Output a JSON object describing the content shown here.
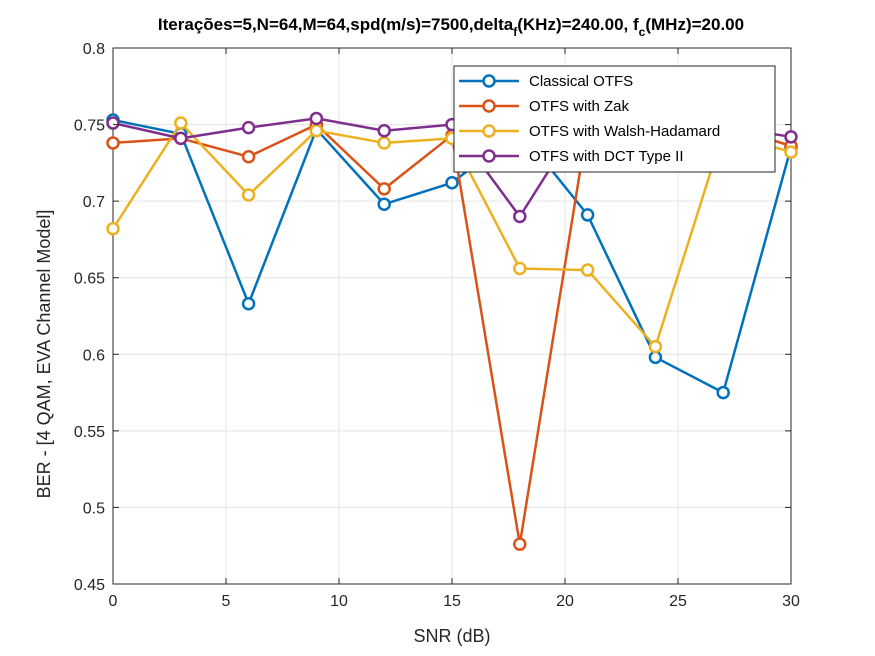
{
  "chart_data": {
    "type": "line",
    "title": {
      "main": "Iterações=5,N=64,M=64,spd(m/s)=7500,delta",
      "sub1": "f",
      "mid": "(KHz)=240.00, f",
      "sub2": "c",
      "tail": "(MHz)=20.00"
    },
    "xlabel": "SNR (dB)",
    "ylabel": "BER - [4 QAM, EVA Channel Model]",
    "xlim": [
      0,
      30
    ],
    "ylim": [
      0.45,
      0.8
    ],
    "xticks": [
      "0",
      "5",
      "10",
      "15",
      "20",
      "25",
      "30"
    ],
    "yticks": [
      "0.45",
      "0.5",
      "0.55",
      "0.6",
      "0.65",
      "0.7",
      "0.75",
      "0.8"
    ],
    "grid": true,
    "legend_position": "top-right",
    "x": [
      0,
      3,
      6,
      9,
      12,
      15,
      18,
      21,
      24,
      27,
      30
    ],
    "series": [
      {
        "name": "Classical OTFS",
        "color": "#0072BD",
        "values": [
          0.753,
          0.744,
          0.633,
          0.747,
          0.698,
          0.712,
          0.746,
          0.691,
          0.598,
          0.575,
          0.735
        ]
      },
      {
        "name": "OTFS with Zak",
        "color": "#D95319",
        "values": [
          0.738,
          0.741,
          0.729,
          0.75,
          0.708,
          0.743,
          0.476,
          0.75,
          0.75,
          0.75,
          0.736
        ]
      },
      {
        "name": "OTFS with Walsh-Hadamard",
        "color": "#EDB120",
        "values": [
          0.682,
          0.751,
          0.704,
          0.746,
          0.738,
          0.741,
          0.656,
          0.655,
          0.605,
          0.745,
          0.732
        ]
      },
      {
        "name": "OTFS with DCT Type II",
        "color": "#7E2F8E",
        "values": [
          0.751,
          0.741,
          0.748,
          0.754,
          0.746,
          0.75,
          0.69,
          0.76,
          0.76,
          0.749,
          0.742
        ]
      }
    ]
  }
}
